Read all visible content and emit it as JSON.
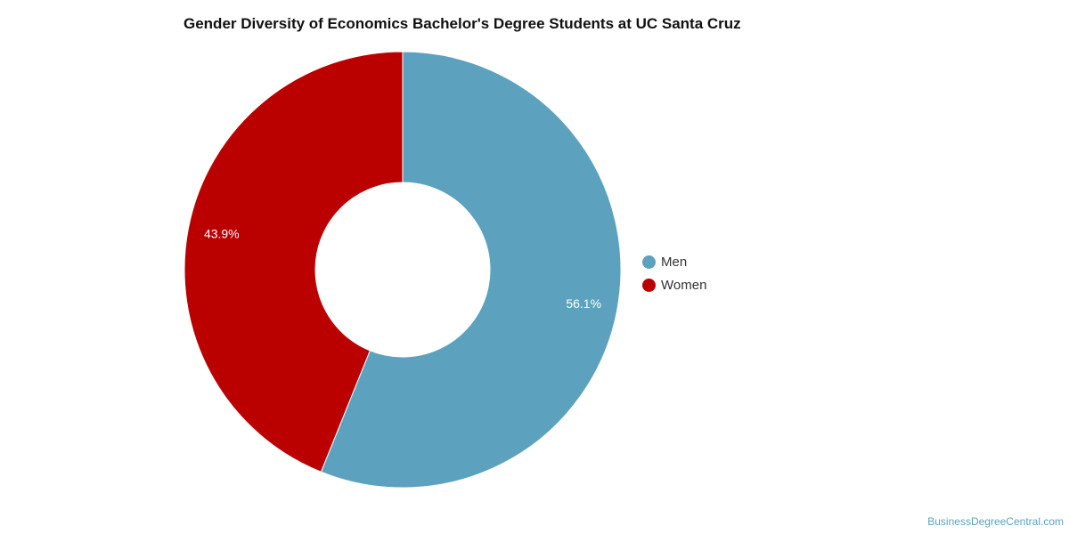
{
  "chart_data": {
    "type": "pie",
    "style": "donut",
    "title": "Gender Diversity of Economics Bachelor's Degree Students at UC Santa Cruz",
    "categories": [
      "Men",
      "Women"
    ],
    "values": [
      56.1,
      43.9
    ],
    "data_labels": [
      "56.1%",
      "43.9%"
    ],
    "colors": [
      "#5ca2be",
      "#bb0000"
    ],
    "legend_position": "right",
    "grid": false
  },
  "credit": {
    "text": "BusinessDegreeCentral.com"
  }
}
